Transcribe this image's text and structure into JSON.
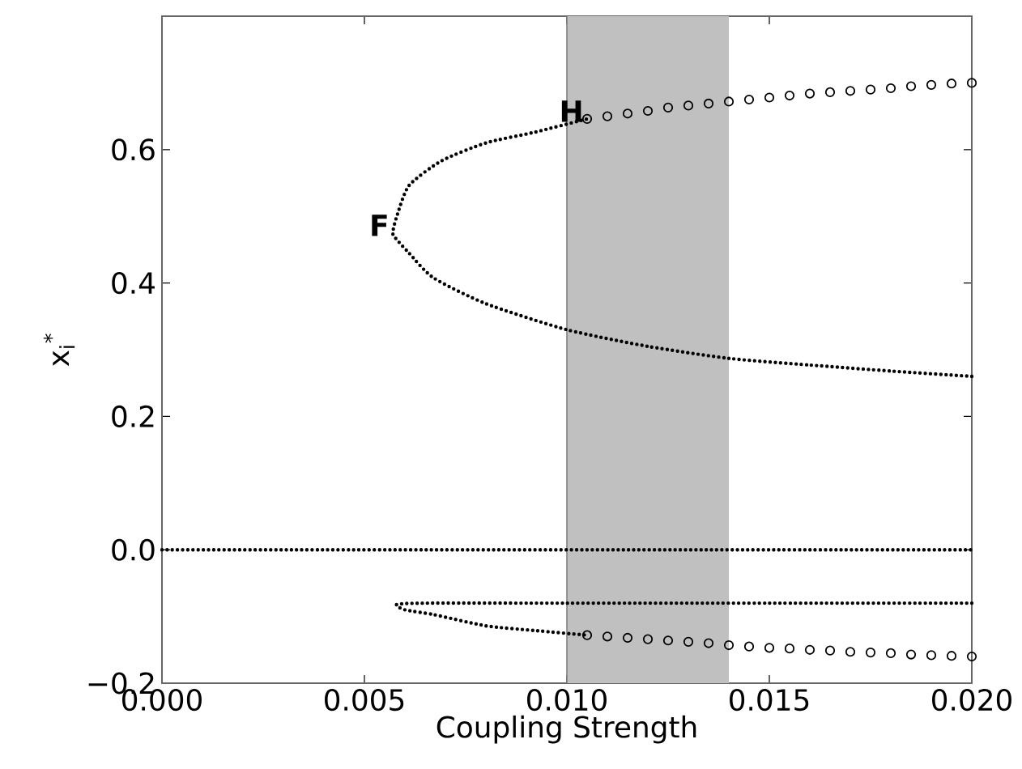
{
  "chart_data": {
    "type": "line",
    "xlabel": "Coupling Strength",
    "ylabel": "x$_{i}$$^{*}$",
    "xlim": [
      0,
      0.02
    ],
    "ylim": [
      -0.2,
      0.8
    ],
    "xticks": [
      {
        "value": 0,
        "label": "0.000"
      },
      {
        "value": 0.005,
        "label": "0.005"
      },
      {
        "value": 0.01,
        "label": "0.010"
      },
      {
        "value": 0.015,
        "label": "0.015"
      },
      {
        "value": 0.02,
        "label": "0.020"
      }
    ],
    "yticks": [
      {
        "value": -0.2,
        "label": "−0.2"
      },
      {
        "value": 0,
        "label": "0.0"
      },
      {
        "value": 0.2,
        "label": "0.2"
      },
      {
        "value": 0.4,
        "label": "0.4"
      },
      {
        "value": 0.6,
        "label": "0.6"
      }
    ],
    "bands": [
      {
        "axis": "x",
        "from": 0.01,
        "to": 0.014,
        "color": "#c0c0c0"
      }
    ],
    "annotations": [
      {
        "text": "F",
        "x": 0.0057,
        "y": 0.475
      },
      {
        "text": "H",
        "x": 0.0105,
        "y": 0.646
      }
    ],
    "series": [
      {
        "line_style": "dotted",
        "marker": "none",
        "color": "#000000",
        "x": [
          0,
          0.02
        ],
        "values": [
          0,
          0
        ]
      },
      {
        "line_style": "dotted",
        "marker": "none",
        "color": "#000000",
        "x": [
          0.02,
          0.018,
          0.016,
          0.014,
          0.012,
          0.01,
          0.008,
          0.0067,
          0.0061,
          0.0058,
          0.0057,
          0.0058,
          0.0061,
          0.0069,
          0.008,
          0.0092,
          0.0105
        ],
        "values": [
          0.26,
          0.268,
          0.277,
          0.287,
          0.305,
          0.33,
          0.369,
          0.408,
          0.445,
          0.465,
          0.475,
          0.5,
          0.546,
          0.583,
          0.61,
          0.626,
          0.646
        ]
      },
      {
        "line_style": "dotted",
        "marker": "none",
        "color": "#000000",
        "x": [
          0.02,
          0.015,
          0.01,
          0.0065,
          0.0058,
          0.006,
          0.0067,
          0.008,
          0.0092,
          0.0105
        ],
        "values": [
          -0.08,
          -0.08,
          -0.08,
          -0.08,
          -0.082,
          -0.09,
          -0.097,
          -0.114,
          -0.121,
          -0.128
        ]
      },
      {
        "type": "scatter",
        "marker": "circle",
        "color": "#000000",
        "x": [
          0.0105,
          0.011,
          0.0115,
          0.012,
          0.0125,
          0.013,
          0.0135,
          0.014,
          0.0145,
          0.015,
          0.0155,
          0.016,
          0.0165,
          0.017,
          0.0175,
          0.018,
          0.0185,
          0.019,
          0.0195,
          0.02
        ],
        "values": [
          0.646,
          0.65,
          0.654,
          0.658,
          0.663,
          0.666,
          0.669,
          0.672,
          0.675,
          0.678,
          0.681,
          0.684,
          0.686,
          0.688,
          0.69,
          0.692,
          0.695,
          0.697,
          0.699,
          0.7
        ]
      },
      {
        "type": "scatter",
        "marker": "circle",
        "color": "#000000",
        "x": [
          0.0105,
          0.011,
          0.0115,
          0.012,
          0.0125,
          0.013,
          0.0135,
          0.014,
          0.0145,
          0.015,
          0.0155,
          0.016,
          0.0165,
          0.017,
          0.0175,
          0.018,
          0.0185,
          0.019,
          0.0195,
          0.02
        ],
        "values": [
          -0.128,
          -0.13,
          -0.132,
          -0.134,
          -0.136,
          -0.138,
          -0.14,
          -0.143,
          -0.145,
          -0.147,
          -0.148,
          -0.15,
          -0.151,
          -0.153,
          -0.154,
          -0.155,
          -0.157,
          -0.158,
          -0.159,
          -0.16
        ]
      }
    ]
  }
}
